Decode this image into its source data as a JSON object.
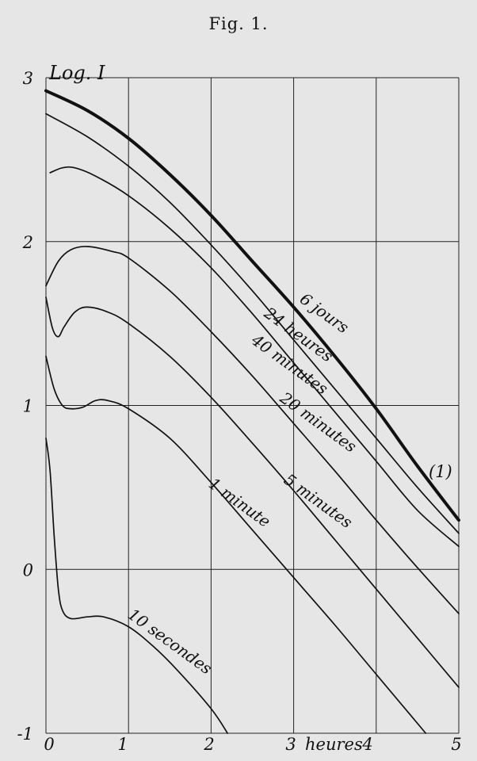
{
  "figure": {
    "title": "Fig. 1."
  },
  "chart_data": {
    "type": "line",
    "ylabel": "Log. I",
    "xlabel": "heures",
    "xlim": [
      0,
      5
    ],
    "ylim": [
      -1,
      3
    ],
    "x_ticks": [
      "0",
      "1",
      "2",
      "3",
      "4",
      "5"
    ],
    "y_ticks": [
      "3",
      "2",
      "1",
      "0",
      "-1"
    ],
    "grid": true,
    "annotation": "(1)",
    "series": [
      {
        "name": "6 jours",
        "heavy": true,
        "points": [
          [
            0,
            2.92
          ],
          [
            0.5,
            2.8
          ],
          [
            1,
            2.63
          ],
          [
            1.5,
            2.41
          ],
          [
            2,
            2.16
          ],
          [
            2.5,
            1.88
          ],
          [
            3,
            1.6
          ],
          [
            3.5,
            1.3
          ],
          [
            4,
            0.98
          ],
          [
            4.5,
            0.63
          ],
          [
            5,
            0.3
          ]
        ]
      },
      {
        "name": "24 heures",
        "points": [
          [
            0,
            2.78
          ],
          [
            0.5,
            2.64
          ],
          [
            1,
            2.46
          ],
          [
            1.5,
            2.24
          ],
          [
            2,
            1.98
          ],
          [
            2.5,
            1.7
          ],
          [
            3,
            1.4
          ],
          [
            3.5,
            1.1
          ],
          [
            4,
            0.8
          ],
          [
            4.5,
            0.5
          ],
          [
            5,
            0.22
          ]
        ]
      },
      {
        "name": "40 minutes",
        "points": [
          [
            0.05,
            2.42
          ],
          [
            0.2,
            2.45
          ],
          [
            0.35,
            2.45
          ],
          [
            0.6,
            2.4
          ],
          [
            1,
            2.28
          ],
          [
            1.5,
            2.08
          ],
          [
            2,
            1.84
          ],
          [
            2.5,
            1.56
          ],
          [
            3,
            1.26
          ],
          [
            3.5,
            0.96
          ],
          [
            4,
            0.66
          ],
          [
            4.5,
            0.36
          ],
          [
            5,
            0.14
          ]
        ]
      },
      {
        "name": "20 minutes",
        "points": [
          [
            0,
            1.73
          ],
          [
            0.15,
            1.88
          ],
          [
            0.3,
            1.95
          ],
          [
            0.5,
            1.97
          ],
          [
            0.8,
            1.94
          ],
          [
            1,
            1.9
          ],
          [
            1.5,
            1.7
          ],
          [
            2,
            1.45
          ],
          [
            2.5,
            1.18
          ],
          [
            3,
            0.89
          ],
          [
            3.5,
            0.6
          ],
          [
            4,
            0.3
          ],
          [
            4.5,
            0.01
          ],
          [
            5,
            -0.27
          ]
        ]
      },
      {
        "name": "5 minutes",
        "points": [
          [
            0,
            1.66
          ],
          [
            0.08,
            1.47
          ],
          [
            0.15,
            1.42
          ],
          [
            0.22,
            1.48
          ],
          [
            0.35,
            1.57
          ],
          [
            0.5,
            1.6
          ],
          [
            0.75,
            1.57
          ],
          [
            1,
            1.5
          ],
          [
            1.5,
            1.3
          ],
          [
            2,
            1.05
          ],
          [
            2.5,
            0.77
          ],
          [
            3,
            0.48
          ],
          [
            3.5,
            0.18
          ],
          [
            4,
            -0.12
          ],
          [
            4.5,
            -0.42
          ],
          [
            5,
            -0.72
          ]
        ]
      },
      {
        "name": "1 minute",
        "points": [
          [
            0,
            1.3
          ],
          [
            0.1,
            1.1
          ],
          [
            0.2,
            1.0
          ],
          [
            0.3,
            0.98
          ],
          [
            0.45,
            0.99
          ],
          [
            0.6,
            1.03
          ],
          [
            0.75,
            1.03
          ],
          [
            1,
            0.98
          ],
          [
            1.5,
            0.8
          ],
          [
            2,
            0.53
          ],
          [
            2.5,
            0.24
          ],
          [
            3,
            -0.05
          ],
          [
            3.5,
            -0.34
          ],
          [
            4,
            -0.64
          ],
          [
            4.4,
            -0.88
          ],
          [
            4.6,
            -1.0
          ]
        ]
      },
      {
        "name": "10 secondes",
        "points": [
          [
            0,
            0.8
          ],
          [
            0.05,
            0.6
          ],
          [
            0.1,
            0.2
          ],
          [
            0.15,
            -0.12
          ],
          [
            0.2,
            -0.25
          ],
          [
            0.3,
            -0.3
          ],
          [
            0.5,
            -0.29
          ],
          [
            0.7,
            -0.29
          ],
          [
            1,
            -0.35
          ],
          [
            1.3,
            -0.47
          ],
          [
            1.6,
            -0.62
          ],
          [
            2,
            -0.85
          ],
          [
            2.2,
            -1.0
          ]
        ]
      }
    ]
  }
}
